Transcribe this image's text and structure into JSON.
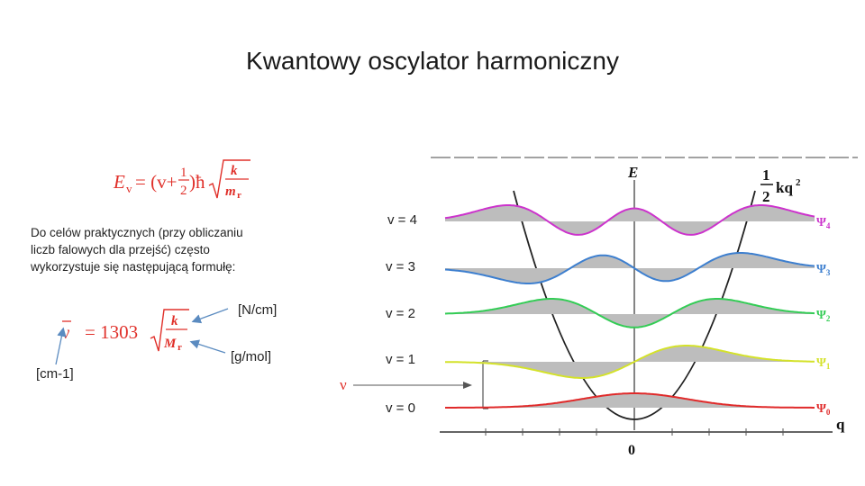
{
  "slide": {
    "title": "Kwantowy oscylator harmoniczny",
    "description": "Do celów praktycznych (przy obliczaniu liczb falowych dla przejść) często wykorzystuje się następującą formułę:",
    "units": {
      "force_constant": "[N/cm]",
      "molar_mass": "[g/mol]",
      "wavenumber": "[cm-1]"
    }
  },
  "formula1": {
    "lhs": "E",
    "lhs_sub": "v",
    "eq": "= (v+",
    "frac_num": "1",
    "frac_den": "2",
    "hbar": ")ħ",
    "sqrt_num": "k",
    "sqrt_den": "m",
    "sqrt_den_sub": "r"
  },
  "formula2": {
    "lhs": "ν",
    "eq": "= 1303",
    "sqrt_num": "k",
    "sqrt_den": "M",
    "sqrt_den_sub": "r"
  },
  "diagram": {
    "energy_axis": "E",
    "coordinate_axis": "q",
    "origin": "0",
    "potential": {
      "half": "1",
      "den": "2",
      "term": "kq",
      "exp": "2"
    },
    "nu_label": "ν",
    "levels": [
      {
        "v": "v = 4",
        "psi": "Ψ",
        "sub": "4",
        "color": "#cc33cc"
      },
      {
        "v": "v = 3",
        "psi": "Ψ",
        "sub": "3",
        "color": "#3d7fcf"
      },
      {
        "v": "v = 2",
        "psi": "Ψ",
        "sub": "2",
        "color": "#33cc55"
      },
      {
        "v": "v = 1",
        "psi": "Ψ",
        "sub": "1",
        "color": "#d4e22a"
      },
      {
        "v": "v = 0",
        "psi": "Ψ",
        "sub": "0",
        "color": "#e02a2a"
      }
    ]
  }
}
